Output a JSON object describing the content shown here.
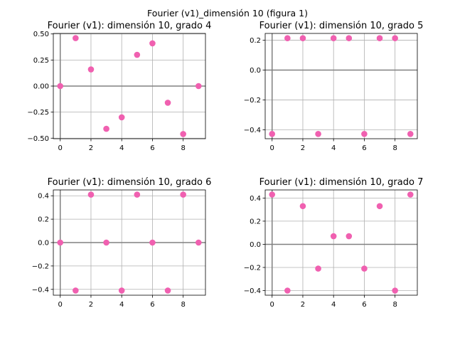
{
  "suptitle": "Fourier (v1)_dimensión 10 (figura 1)",
  "colors": {
    "point": "#f060b0",
    "grid": "#b0b0b0",
    "zero_line": "#808080",
    "axis": "#000000"
  },
  "chart_data": [
    {
      "type": "scatter",
      "title": "Fourier (v1): dimensión 10, grado 4",
      "x": [
        0,
        1,
        2,
        3,
        4,
        5,
        6,
        7,
        8,
        9
      ],
      "y": [
        0.0,
        0.46,
        0.16,
        -0.41,
        -0.3,
        0.3,
        0.41,
        -0.16,
        -0.46,
        0.0
      ],
      "xlim": [
        -0.45,
        9.45
      ],
      "ylim": [
        -0.505,
        0.505
      ],
      "xticks": [
        0,
        2,
        4,
        6,
        8
      ],
      "xtick_labels": [
        "0",
        "2",
        "4",
        "6",
        "8"
      ],
      "yticks": [
        0.5,
        0.25,
        0.0,
        -0.25,
        -0.5
      ],
      "ytick_labels": [
        "0.50",
        "0.25",
        "0.00",
        "−0.25",
        "−0.50"
      ],
      "grid": true,
      "xlabel": "",
      "ylabel": ""
    },
    {
      "type": "scatter",
      "title": "Fourier (v1): dimensión 10, grado 5",
      "x": [
        0,
        1,
        2,
        3,
        4,
        5,
        6,
        7,
        8,
        9
      ],
      "y": [
        -0.427,
        0.213,
        0.213,
        -0.427,
        0.213,
        0.213,
        -0.427,
        0.213,
        0.213,
        -0.427
      ],
      "xlim": [
        -0.45,
        9.45
      ],
      "ylim": [
        -0.459,
        0.245
      ],
      "xticks": [
        0,
        2,
        4,
        6,
        8
      ],
      "xtick_labels": [
        "0",
        "2",
        "4",
        "6",
        "8"
      ],
      "yticks": [
        0.2,
        0.0,
        -0.2,
        -0.4
      ],
      "ytick_labels": [
        "0.2",
        "0.0",
        "−0.2",
        "−0.4"
      ],
      "grid": true,
      "xlabel": "",
      "ylabel": ""
    },
    {
      "type": "scatter",
      "title": "Fourier (v1): dimensión 10, grado 6",
      "x": [
        0,
        1,
        2,
        3,
        4,
        5,
        6,
        7,
        8,
        9
      ],
      "y": [
        0.0,
        -0.41,
        0.41,
        0.0,
        -0.41,
        0.41,
        0.0,
        -0.41,
        0.41,
        0.0
      ],
      "xlim": [
        -0.45,
        9.45
      ],
      "ylim": [
        -0.45,
        0.45
      ],
      "xticks": [
        0,
        2,
        4,
        6,
        8
      ],
      "xtick_labels": [
        "0",
        "2",
        "4",
        "6",
        "8"
      ],
      "yticks": [
        0.4,
        0.2,
        0.0,
        -0.2,
        -0.4
      ],
      "ytick_labels": [
        "0.4",
        "0.2",
        "0.0",
        "−0.2",
        "−0.4"
      ],
      "grid": true,
      "xlabel": "",
      "ylabel": ""
    },
    {
      "type": "scatter",
      "title": "Fourier (v1): dimensión 10, grado 7",
      "x": [
        0,
        1,
        2,
        3,
        4,
        5,
        6,
        7,
        8,
        9
      ],
      "y": [
        0.43,
        -0.4,
        0.33,
        -0.21,
        0.07,
        0.07,
        -0.21,
        0.33,
        -0.4,
        0.43
      ],
      "xlim": [
        -0.45,
        9.45
      ],
      "ylim": [
        -0.44,
        0.47
      ],
      "xticks": [
        0,
        2,
        4,
        6,
        8
      ],
      "xtick_labels": [
        "0",
        "2",
        "4",
        "6",
        "8"
      ],
      "yticks": [
        0.4,
        0.2,
        0.0,
        -0.2,
        -0.4
      ],
      "ytick_labels": [
        "0.4",
        "0.2",
        "0.0",
        "−0.2",
        "−0.4"
      ],
      "grid": true,
      "xlabel": "",
      "ylabel": ""
    }
  ]
}
